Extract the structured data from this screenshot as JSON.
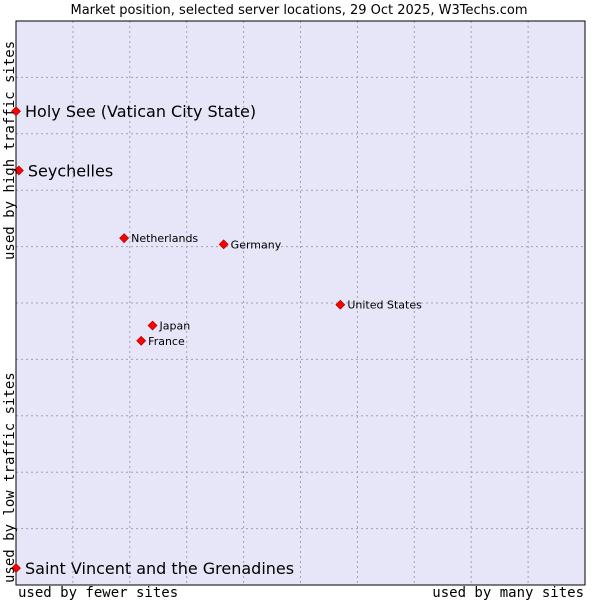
{
  "chart_data": {
    "type": "scatter",
    "title": "Market position, selected server locations, 29 Oct 2025, W3Techs.com",
    "xlabel_left": "used by fewer sites",
    "xlabel_right": "used by many sites",
    "ylabel_bottom": "used by low traffic sites",
    "ylabel_top": "used by high traffic sites",
    "xlim": [
      0,
      10
    ],
    "ylim": [
      0,
      10
    ],
    "grid": true,
    "points": [
      {
        "name": "Holy See (Vatican City State)",
        "x": 0.0,
        "y": 8.4,
        "label_size": "large"
      },
      {
        "name": "Seychelles",
        "x": 0.05,
        "y": 7.35,
        "label_size": "large"
      },
      {
        "name": "Netherlands",
        "x": 1.9,
        "y": 6.15,
        "label_size": "small"
      },
      {
        "name": "Germany",
        "x": 3.65,
        "y": 6.04,
        "label_size": "small"
      },
      {
        "name": "United States",
        "x": 5.7,
        "y": 4.97,
        "label_size": "small"
      },
      {
        "name": "Japan",
        "x": 2.4,
        "y": 4.6,
        "label_size": "small"
      },
      {
        "name": "France",
        "x": 2.2,
        "y": 4.33,
        "label_size": "small"
      },
      {
        "name": "Saint Vincent and the Grenadines",
        "x": 0.0,
        "y": 0.3,
        "label_size": "large"
      }
    ]
  },
  "colors": {
    "plot_background": "#e6e6f8",
    "grid": "#a0a0b0",
    "frame": "#000000",
    "point": "#ff0000",
    "point_border": "#990000"
  }
}
